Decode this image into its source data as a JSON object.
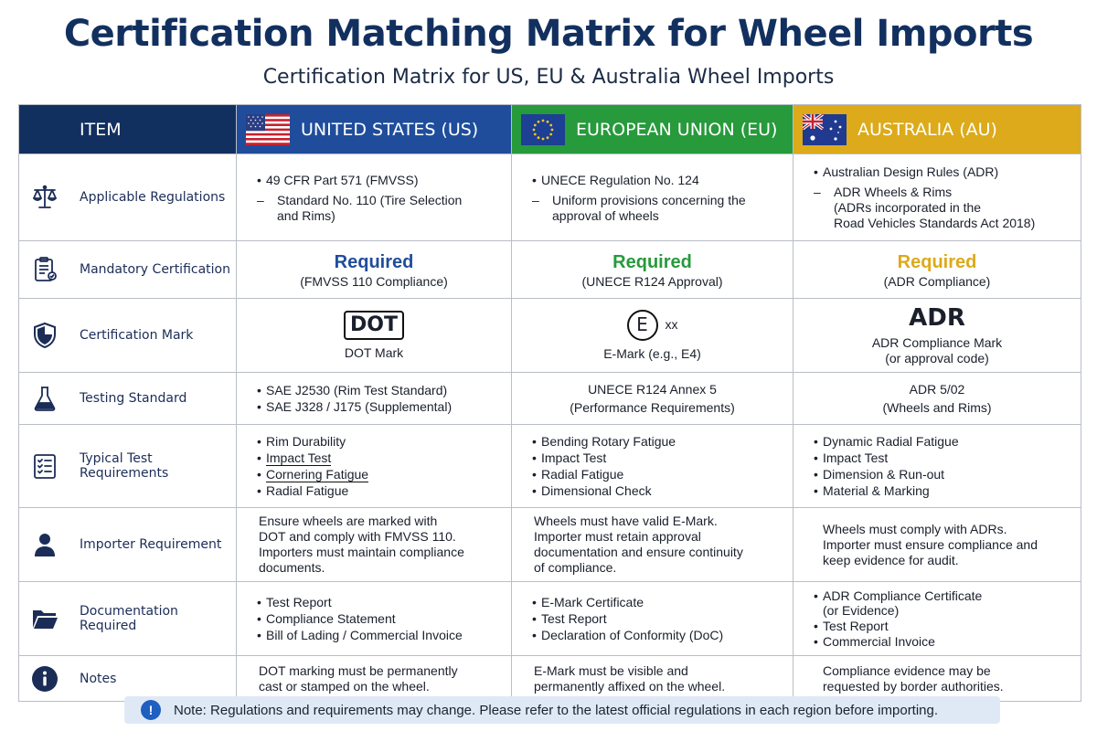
{
  "header": {
    "title": "Certification Matching Matrix for Wheel Imports",
    "subtitle": "Certification Matrix for US, EU & Australia Wheel Imports"
  },
  "columns": {
    "item": "ITEM",
    "us": "UNITED STATES (US)",
    "eu": "EUROPEAN UNION (EU)",
    "au": "AUSTRALIA (AU)"
  },
  "colors": {
    "us": "#1f4d9c",
    "eu": "#279a3b",
    "au": "#dcaa1a",
    "navy": "#12305f"
  },
  "rows": {
    "regulations": {
      "label": "Applicable Regulations",
      "icon": "scales-icon",
      "us": {
        "main": "49 CFR Part 571 (FMVSS)",
        "sub1": "Standard No. 110 (Tire Selection",
        "sub2": "and Rims)"
      },
      "eu": {
        "main": "UNECE Regulation No. 124",
        "sub1": "Uniform provisions concerning the",
        "sub2": "approval of wheels"
      },
      "au": {
        "main": "Australian Design Rules (ADR)",
        "sub1": "ADR  Wheels & Rims",
        "sub2": "(ADRs incorporated in the",
        "sub3": "Road Vehicles Standards Act 2018)"
      }
    },
    "mandatory": {
      "label": "Mandatory Certification",
      "icon": "clipboard-icon",
      "us": {
        "status": "Required",
        "detail": "(FMVSS 110 Compliance)"
      },
      "eu": {
        "status": "Required",
        "detail": "(UNECE R124 Approval)"
      },
      "au": {
        "status": "Required",
        "detail": "(ADR Compliance)"
      }
    },
    "mark": {
      "label": "Certification Mark",
      "icon": "shield-icon",
      "us": {
        "mark": "DOT",
        "caption": "DOT Mark"
      },
      "eu": {
        "mark": "E",
        "suffix": "xx",
        "caption": "E-Mark (e.g., E4)"
      },
      "au": {
        "mark": "ADR",
        "caption1": "ADR Compliance Mark",
        "caption2": "(or approval code)"
      }
    },
    "testing": {
      "label": "Testing Standard",
      "icon": "flask-icon",
      "us": [
        "SAE J2530 (Rim Test Standard)",
        "SAE J328 / J175 (Supplemental)"
      ],
      "eu": {
        "line1": "UNECE R124 Annex 5",
        "line2": "(Performance Requirements)"
      },
      "au": {
        "line1": "ADR 5/02",
        "line2": "(Wheels and Rims)"
      }
    },
    "tests": {
      "label": "Typical Test Requirements",
      "icon": "checklist-icon",
      "us": [
        "Rim Durability",
        "Impact Test",
        "Cornering Fatigue",
        "Radial Fatigue"
      ],
      "eu": [
        "Bending Rotary Fatigue",
        "Impact Test",
        "Radial Fatigue",
        "Dimensional Check"
      ],
      "au": [
        "Dynamic Radial Fatigue",
        "Impact Test",
        "Dimension & Run-out",
        "Material & Marking"
      ]
    },
    "importer": {
      "label": "Importer Requirement",
      "icon": "person-icon",
      "us": [
        "Ensure wheels are marked with",
        "DOT and comply with FMVSS 110.",
        "Importers must maintain compliance",
        "documents."
      ],
      "eu": [
        "Wheels must have valid E-Mark.",
        "Importer must retain approval",
        "documentation and ensure continuity",
        "of compliance."
      ],
      "au": [
        "Wheels must comply with ADRs.",
        "Importer must ensure compliance and",
        "keep evidence for audit."
      ]
    },
    "documentation": {
      "label": "Documentation Required",
      "icon": "folder-icon",
      "us": [
        "Test Report",
        "Compliance Statement",
        "Bill of Lading / Commercial Invoice"
      ],
      "eu": [
        "E-Mark Certificate",
        "Test Report",
        "Declaration of Conformity (DoC)"
      ],
      "au": {
        "item1": "ADR Compliance Certificate",
        "item1b": "(or Evidence)",
        "item2": "Test Report",
        "item3": "Commercial Invoice"
      }
    },
    "notes": {
      "label": "Notes",
      "icon": "info-icon",
      "us": [
        "DOT marking must be permanently",
        "cast or stamped on the wheel."
      ],
      "eu": [
        "E-Mark must be visible and",
        "permanently affixed on the wheel."
      ],
      "au": [
        "Compliance evidence may be",
        "requested by border authorities."
      ]
    }
  },
  "footer_note": {
    "icon": "!",
    "text": "Note: Regulations and requirements may change. Please refer to the latest official regulations in each region before importing."
  }
}
